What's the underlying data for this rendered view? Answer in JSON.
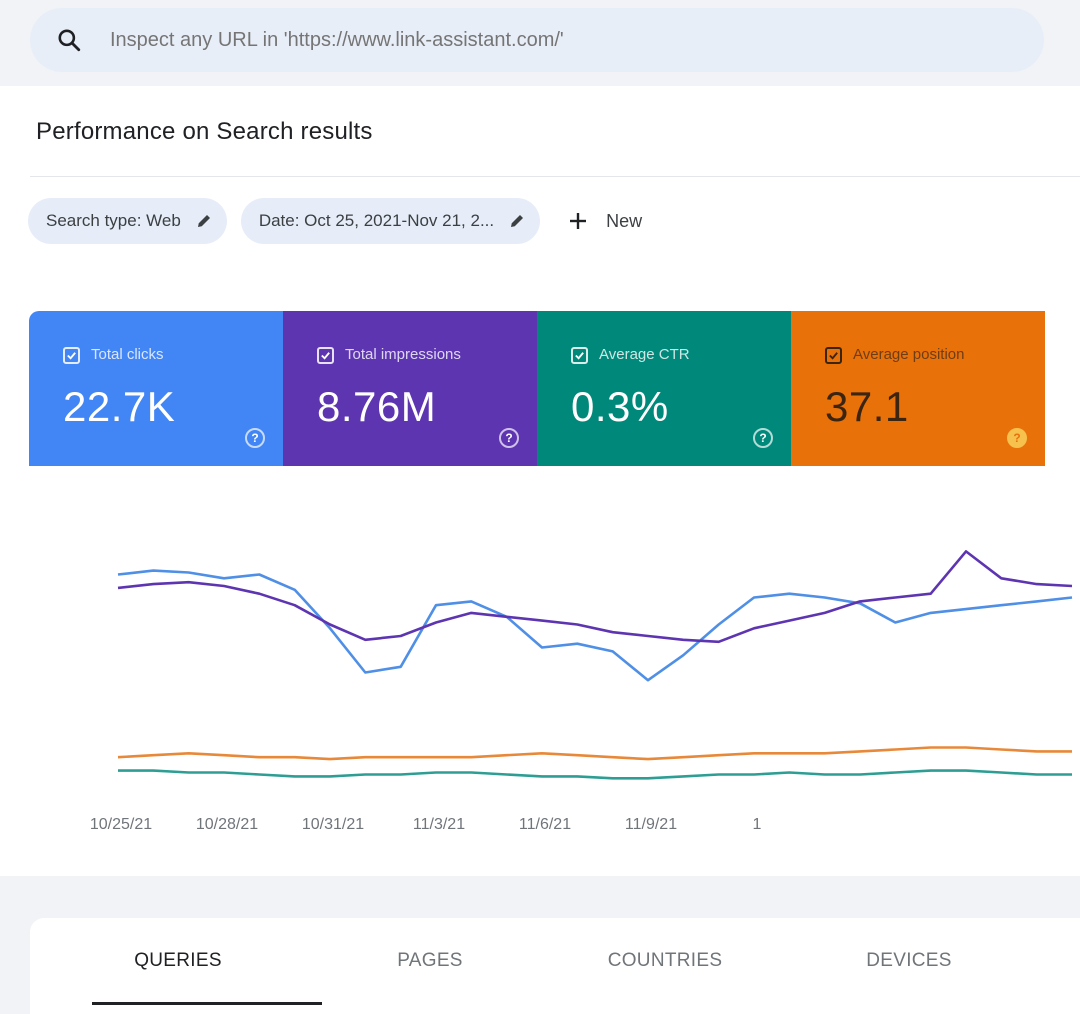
{
  "search": {
    "placeholder": "Inspect any URL in 'https://www.link-assistant.com/'"
  },
  "page_title": "Performance on Search results",
  "filters": {
    "search_type": "Search type: Web",
    "date": "Date: Oct 25, 2021-Nov 21, 2...",
    "new_label": "New"
  },
  "metrics": [
    {
      "label": "Total clicks",
      "value": "22.7K",
      "color": "#4285f4",
      "checked": true
    },
    {
      "label": "Total impressions",
      "value": "8.76M",
      "color": "#5e35b1",
      "checked": true
    },
    {
      "label": "Average CTR",
      "value": "0.3%",
      "color": "#00897b",
      "checked": true
    },
    {
      "label": "Average position",
      "value": "37.1",
      "color": "#e8710a",
      "checked": true
    }
  ],
  "chart_data": {
    "type": "line",
    "x": [
      "10/25/21",
      "10/26/21",
      "10/27/21",
      "10/28/21",
      "10/29/21",
      "10/30/21",
      "10/31/21",
      "11/1/21",
      "11/2/21",
      "11/3/21",
      "11/4/21",
      "11/5/21",
      "11/6/21",
      "11/7/21",
      "11/8/21",
      "11/9/21",
      "11/10/21",
      "11/11/21",
      "11/12/21",
      "11/13/21",
      "11/14/21",
      "11/15/21",
      "11/16/21",
      "11/17/21",
      "11/18/21",
      "11/19/21",
      "11/20/21",
      "11/21/21"
    ],
    "x_ticks": [
      "10/25/21",
      "10/28/21",
      "10/31/21",
      "11/3/21",
      "11/6/21",
      "11/9/21",
      "1"
    ],
    "ylim": [
      0,
      100
    ],
    "grid": false,
    "series": [
      {
        "name": "Total clicks",
        "color": "#4f8fe6",
        "values": [
          80,
          82,
          81,
          78,
          80,
          72,
          52,
          29,
          32,
          64,
          66,
          58,
          42,
          44,
          40,
          25,
          38,
          54,
          68,
          70,
          68,
          65,
          55,
          60,
          62,
          64,
          66,
          68
        ]
      },
      {
        "name": "Total impressions",
        "color": "#5e35b1",
        "values": [
          73,
          75,
          76,
          74,
          70,
          64,
          54,
          46,
          48,
          55,
          60,
          58,
          56,
          54,
          50,
          48,
          46,
          45,
          52,
          56,
          60,
          66,
          68,
          70,
          92,
          78,
          75,
          74
        ]
      },
      {
        "name": "Average position",
        "color": "#e8893a",
        "values": [
          -15,
          -14,
          -13,
          -14,
          -15,
          -15,
          -16,
          -15,
          -15,
          -15,
          -15,
          -14,
          -13,
          -14,
          -15,
          -16,
          -15,
          -14,
          -13,
          -13,
          -13,
          -12,
          -11,
          -10,
          -10,
          -11,
          -12,
          -12
        ]
      },
      {
        "name": "Average CTR",
        "color": "#2e9e94",
        "values": [
          -22,
          -22,
          -23,
          -23,
          -24,
          -25,
          -25,
          -24,
          -24,
          -23,
          -23,
          -24,
          -25,
          -25,
          -26,
          -26,
          -25,
          -24,
          -24,
          -23,
          -24,
          -24,
          -23,
          -22,
          -22,
          -23,
          -24,
          -24
        ]
      }
    ]
  },
  "tabs": [
    {
      "label": "QUERIES",
      "active": true
    },
    {
      "label": "PAGES",
      "active": false
    },
    {
      "label": "COUNTRIES",
      "active": false
    },
    {
      "label": "DEVICES",
      "active": false
    }
  ]
}
